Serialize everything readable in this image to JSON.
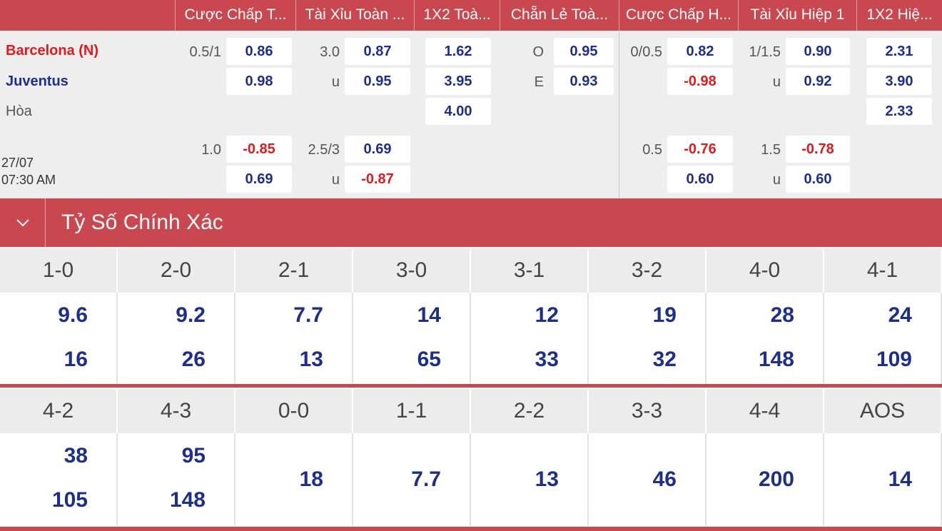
{
  "header": {
    "tabs": [
      "Cược Chấp T...",
      "Tài Xỉu Toàn ...",
      "1X2 Toà...",
      "Chẵn Lẻ Toà...",
      "Cược Chấp H...",
      "Tài Xỉu Hiệp 1",
      "1X2 Hiệ..."
    ]
  },
  "match": {
    "home": "Barcelona (N)",
    "away": "Juventus",
    "draw": "Hòa",
    "date": "27/07",
    "time": "07:30 AM"
  },
  "odds": {
    "main": {
      "ah_line": "0.5/1",
      "ah_home": "0.86",
      "ah_away": "0.98",
      "ou_line": "3.0",
      "ou_over": "0.87",
      "ou_under_label": "u",
      "ou_under": "0.95",
      "x12_home": "1.62",
      "x12_away": "3.95",
      "x12_draw": "4.00",
      "oe_odd_label": "O",
      "oe_odd": "0.95",
      "oe_even_label": "E",
      "oe_even": "0.93",
      "h1_ah_line": "0/0.5",
      "h1_ah_home": "0.82",
      "h1_ah_away": "-0.98",
      "h1_ou_line": "1/1.5",
      "h1_ou_over": "0.90",
      "h1_ou_under_label": "u",
      "h1_ou_under": "0.92",
      "h1_x12_home": "2.31",
      "h1_x12_away": "3.90",
      "h1_x12_draw": "2.33"
    },
    "alt": {
      "ah_line": "1.0",
      "ah_home": "-0.85",
      "ah_away": "0.69",
      "ou_line": "2.5/3",
      "ou_over": "0.69",
      "ou_under_label": "u",
      "ou_under": "-0.87",
      "h1_ah_line": "0.5",
      "h1_ah_home": "-0.76",
      "h1_ah_away": "0.60",
      "h1_ou_line": "1.5",
      "h1_ou_over": "-0.78",
      "h1_ou_under_label": "u",
      "h1_ou_under": "0.60"
    }
  },
  "correct_score": {
    "title": "Tỷ Số Chính Xác",
    "row1": [
      {
        "score": "1-0",
        "home": "9.6",
        "away": "16"
      },
      {
        "score": "2-0",
        "home": "9.2",
        "away": "26"
      },
      {
        "score": "2-1",
        "home": "7.7",
        "away": "13"
      },
      {
        "score": "3-0",
        "home": "14",
        "away": "65"
      },
      {
        "score": "3-1",
        "home": "12",
        "away": "33"
      },
      {
        "score": "3-2",
        "home": "19",
        "away": "32"
      },
      {
        "score": "4-0",
        "home": "28",
        "away": "148"
      },
      {
        "score": "4-1",
        "home": "24",
        "away": "109"
      }
    ],
    "row2": [
      {
        "score": "4-2",
        "home": "38",
        "away": "105"
      },
      {
        "score": "4-3",
        "home": "95",
        "away": "148"
      },
      {
        "score": "0-0",
        "single": "18"
      },
      {
        "score": "1-1",
        "single": "7.7"
      },
      {
        "score": "2-2",
        "single": "13"
      },
      {
        "score": "3-3",
        "single": "46"
      },
      {
        "score": "4-4",
        "single": "200"
      },
      {
        "score": "AOS",
        "single": "14"
      }
    ]
  },
  "colors": {
    "accent": "#c9474f",
    "odds_blue": "#1c2f8f",
    "negative_red": "#e01b1b",
    "home_team": "#e01b1b",
    "away_team": "#1c2f8f"
  }
}
